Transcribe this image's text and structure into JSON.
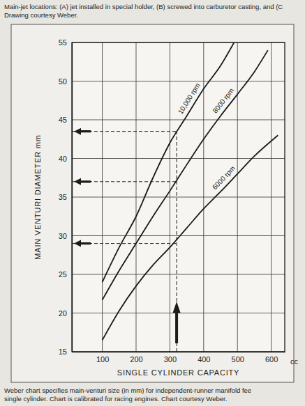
{
  "chart_data": {
    "type": "line",
    "header": [
      "Main-jet locations: (A) jet installed in special holder, (B) screwed into carburetor casting, and (C",
      "Drawing courtesy Weber."
    ],
    "caption": [
      "Weber chart specifies main-venturi size (in mm) for independent-runner manifold fee",
      "single cylinder. Chart is calibrated for racing engines. Chart courtesy Weber."
    ],
    "xlabel": "SINGLE CYLINDER CAPACITY",
    "x_unit_label": "cc",
    "ylabel": "MAIN VENTURI DIAMETER mm",
    "xlim": [
      10,
      640
    ],
    "xticks": [
      100,
      200,
      300,
      400,
      500,
      600
    ],
    "ylim": [
      15,
      55
    ],
    "yticks": [
      15,
      20,
      25,
      30,
      35,
      40,
      45,
      50,
      55
    ],
    "grid": true,
    "series": [
      {
        "name": "10,000 rpm",
        "color": "#1a1a1a",
        "line_style": "solid",
        "x": [
          100,
          150,
          200,
          250,
          300,
          350,
          400,
          450,
          490
        ],
        "values": [
          24,
          28.5,
          32.5,
          37.5,
          42,
          45.5,
          49,
          52,
          55
        ]
      },
      {
        "name": "8000 rpm",
        "color": "#1a1a1a",
        "line_style": "solid",
        "x": [
          100,
          150,
          200,
          250,
          300,
          350,
          400,
          450,
          500,
          550,
          590
        ],
        "values": [
          21.7,
          25.5,
          29,
          32.5,
          35.8,
          39.2,
          42.5,
          45.5,
          48.3,
          51.2,
          54
        ]
      },
      {
        "name": "6000 rpm",
        "color": "#1a1a1a",
        "line_style": "solid",
        "x": [
          100,
          150,
          200,
          250,
          300,
          350,
          400,
          450,
          500,
          550,
          620
        ],
        "values": [
          16.5,
          20.3,
          23.5,
          26.2,
          28.5,
          31,
          33.5,
          35.7,
          38,
          40.3,
          43
        ]
      }
    ],
    "example": {
      "x": 320,
      "values": [
        43.5,
        37,
        29
      ]
    }
  }
}
